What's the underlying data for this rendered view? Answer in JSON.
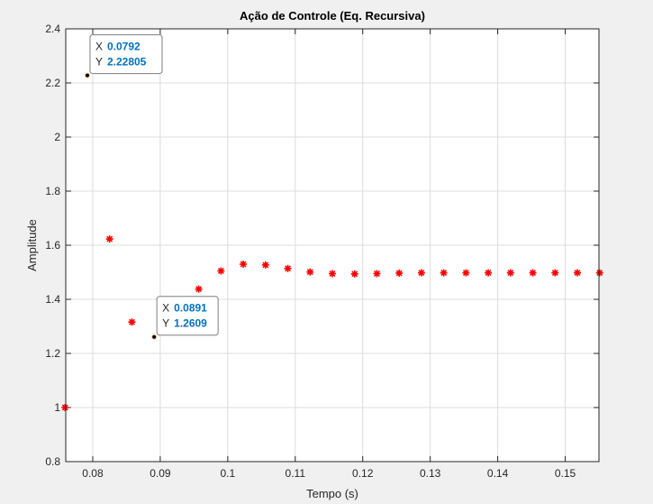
{
  "chart_data": {
    "type": "scatter",
    "title": "Ação de Controle (Eq. Recursiva)",
    "xlabel": "Tempo (s)",
    "ylabel": "Amplitude",
    "xlim": [
      0.076,
      0.155
    ],
    "ylim": [
      0.8,
      2.4
    ],
    "xticks": [
      0.08,
      0.09,
      0.1,
      0.11,
      0.12,
      0.13,
      0.14,
      0.15
    ],
    "xtick_labels": [
      "0.08",
      "0.09",
      "0.1",
      "0.11",
      "0.12",
      "0.13",
      "0.14",
      "0.15"
    ],
    "yticks": [
      0.8,
      1.0,
      1.2,
      1.4,
      1.6,
      1.8,
      2.0,
      2.2,
      2.4
    ],
    "ytick_labels": [
      "0.8",
      "1",
      "1.2",
      "1.4",
      "1.6",
      "1.8",
      "2",
      "2.2",
      "2.4"
    ],
    "grid": true,
    "marker_color": "#ff0000",
    "marker": "asterisk",
    "points": [
      {
        "x": 0.0759,
        "y": 1.0
      },
      {
        "x": 0.0792,
        "y": 2.22805
      },
      {
        "x": 0.0825,
        "y": 1.623
      },
      {
        "x": 0.0858,
        "y": 1.316
      },
      {
        "x": 0.0891,
        "y": 1.2609
      },
      {
        "x": 0.0924,
        "y": 1.36
      },
      {
        "x": 0.0957,
        "y": 1.438
      },
      {
        "x": 0.099,
        "y": 1.505
      },
      {
        "x": 0.1023,
        "y": 1.53
      },
      {
        "x": 0.1056,
        "y": 1.527
      },
      {
        "x": 0.1089,
        "y": 1.514
      },
      {
        "x": 0.1122,
        "y": 1.501
      },
      {
        "x": 0.1155,
        "y": 1.495
      },
      {
        "x": 0.1188,
        "y": 1.494
      },
      {
        "x": 0.1221,
        "y": 1.495
      },
      {
        "x": 0.1254,
        "y": 1.497
      },
      {
        "x": 0.1287,
        "y": 1.498
      },
      {
        "x": 0.132,
        "y": 1.498
      },
      {
        "x": 0.1353,
        "y": 1.498
      },
      {
        "x": 0.1386,
        "y": 1.498
      },
      {
        "x": 0.1419,
        "y": 1.498
      },
      {
        "x": 0.1452,
        "y": 1.498
      },
      {
        "x": 0.1485,
        "y": 1.498
      },
      {
        "x": 0.1518,
        "y": 1.498
      },
      {
        "x": 0.1551,
        "y": 1.498
      }
    ],
    "datatips": [
      {
        "x": 0.0792,
        "y": 2.22805,
        "x_label": "X",
        "y_label": "Y",
        "x_text": "0.0792",
        "y_text": "2.22805"
      },
      {
        "x": 0.0891,
        "y": 1.2609,
        "x_label": "X",
        "y_label": "Y",
        "x_text": "0.0891",
        "y_text": "1.2609"
      }
    ]
  }
}
